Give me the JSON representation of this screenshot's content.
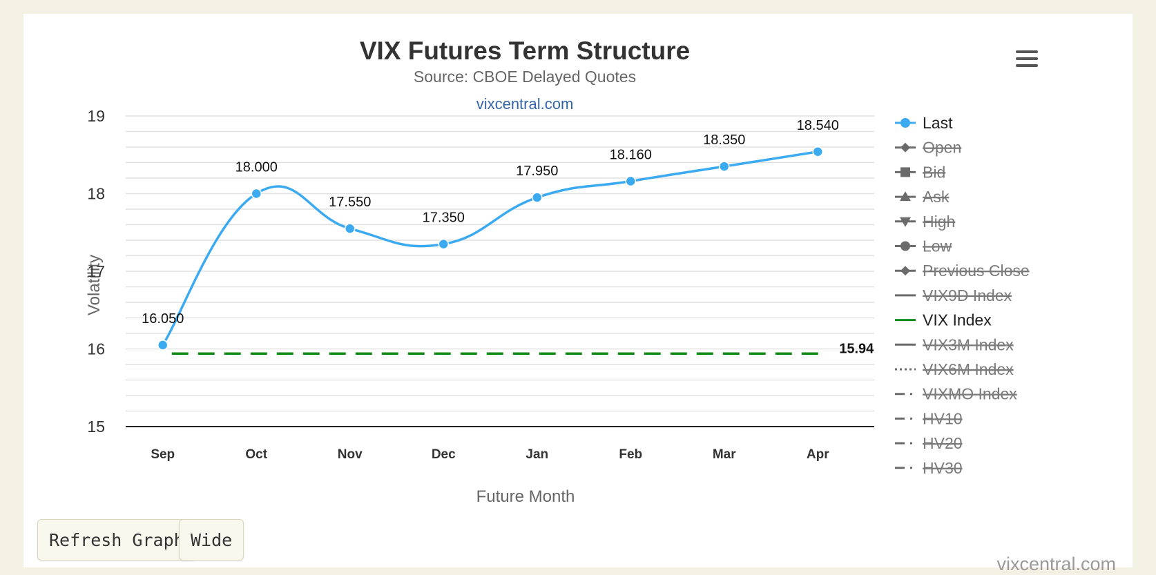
{
  "chart_data": {
    "type": "line",
    "title": "VIX Futures Term Structure",
    "subtitle": "Source: CBOE Delayed Quotes",
    "credit_link": "vixcentral.com",
    "xlabel": "Future Month",
    "ylabel": "Volatility",
    "categories": [
      "Sep",
      "Oct",
      "Nov",
      "Dec",
      "Jan",
      "Feb",
      "Mar",
      "Apr"
    ],
    "ylim": [
      15,
      19
    ],
    "y_ticks": [
      "15",
      "16",
      "17",
      "18",
      "19"
    ],
    "grid": true,
    "legend_position": "right",
    "series": [
      {
        "name": "Last",
        "values": [
          16.05,
          18.0,
          17.55,
          17.35,
          17.95,
          18.16,
          18.35,
          18.54
        ],
        "labels": [
          "16.050",
          "18.000",
          "17.550",
          "17.350",
          "17.950",
          "18.160",
          "18.350",
          "18.540"
        ],
        "color": "#3baaf0",
        "style": "spline with circle markers"
      },
      {
        "name": "VIX Index",
        "values": [
          15.94,
          15.94,
          15.94,
          15.94,
          15.94,
          15.94,
          15.94,
          15.94
        ],
        "end_label": "15.94",
        "color": "#138a17",
        "style": "dashed"
      }
    ],
    "legend": [
      {
        "name": "Last",
        "symbol": "circle",
        "line": "solid",
        "color": "#3baaf0",
        "enabled": true
      },
      {
        "name": "Open",
        "symbol": "diamond",
        "line": "solid",
        "color": "#6b6b6b",
        "enabled": false
      },
      {
        "name": "Bid",
        "symbol": "square",
        "line": "solid",
        "color": "#6b6b6b",
        "enabled": false
      },
      {
        "name": "Ask",
        "symbol": "triangle",
        "line": "solid",
        "color": "#6b6b6b",
        "enabled": false
      },
      {
        "name": "High",
        "symbol": "triangle-down",
        "line": "solid",
        "color": "#6b6b6b",
        "enabled": false
      },
      {
        "name": "Low",
        "symbol": "circle",
        "line": "solid",
        "color": "#6b6b6b",
        "enabled": false
      },
      {
        "name": "Previous Close",
        "symbol": "diamond",
        "line": "solid",
        "color": "#6b6b6b",
        "enabled": false
      },
      {
        "name": "VIX9D Index",
        "symbol": "none",
        "line": "solid",
        "color": "#6b6b6b",
        "enabled": false
      },
      {
        "name": "VIX Index",
        "symbol": "none",
        "line": "solid",
        "color": "#138a17",
        "enabled": true
      },
      {
        "name": "VIX3M Index",
        "symbol": "none",
        "line": "solid",
        "color": "#6b6b6b",
        "enabled": false
      },
      {
        "name": "VIX6M Index",
        "symbol": "none",
        "line": "dotted",
        "color": "#6b6b6b",
        "enabled": false
      },
      {
        "name": "VIXMO Index",
        "symbol": "none",
        "line": "dashdot",
        "color": "#6b6b6b",
        "enabled": false
      },
      {
        "name": "HV10",
        "symbol": "none",
        "line": "dashdot",
        "color": "#6b6b6b",
        "enabled": false
      },
      {
        "name": "HV20",
        "symbol": "none",
        "line": "dashdot",
        "color": "#6b6b6b",
        "enabled": false
      },
      {
        "name": "HV30",
        "symbol": "none",
        "line": "dashdot",
        "color": "#6b6b6b",
        "enabled": false
      }
    ]
  },
  "controls": {
    "refresh_label": "Refresh Graph",
    "wide_label": "Wide",
    "menu_icon": "hamburger-menu-icon"
  },
  "footer": {
    "brand": "vixcentral.com"
  }
}
